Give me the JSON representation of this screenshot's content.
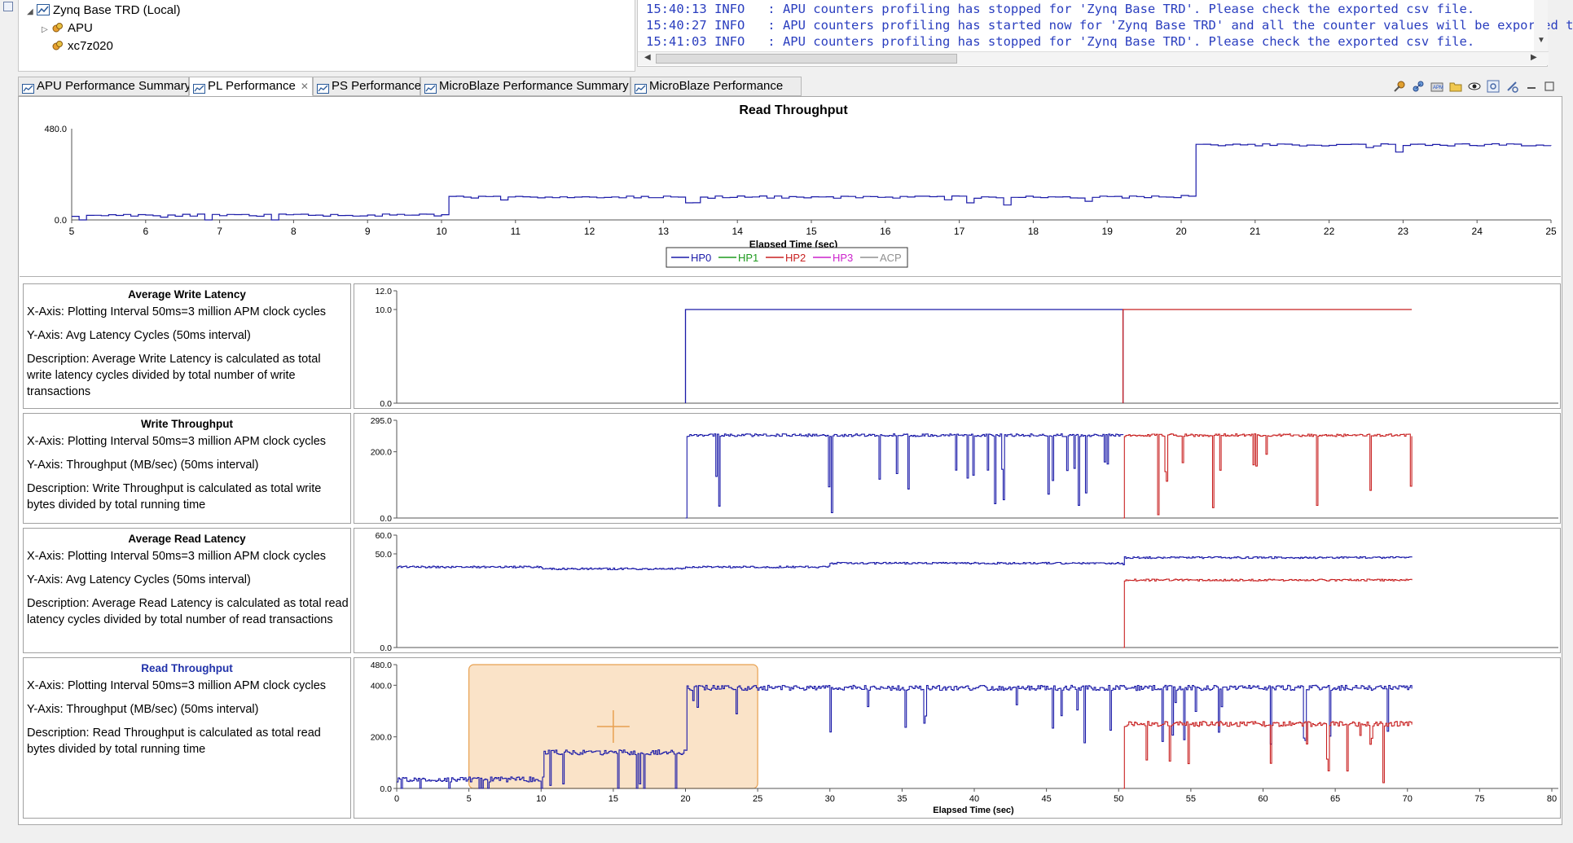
{
  "tree": {
    "root": "Zynq Base TRD (Local)",
    "children": [
      "APU",
      "xc7z020"
    ]
  },
  "console": {
    "lines": [
      "15:40:13 INFO   : APU counters profiling has stopped for 'Zynq Base TRD'. Please check the exported csv file.",
      "15:40:27 INFO   : APU counters profiling has started now for 'Zynq Base TRD' and all the counter values will be exported t",
      "15:41:03 INFO   : APU counters profiling has stopped for 'Zynq Base TRD'. Please check the exported csv file."
    ]
  },
  "tabs": [
    {
      "label": "APU Performance Summary",
      "active": false
    },
    {
      "label": "PL Performance",
      "active": true,
      "closable": true
    },
    {
      "label": "PS Performance",
      "active": false
    },
    {
      "label": "MicroBlaze Performance Summary",
      "active": false
    },
    {
      "label": "MicroBlaze Performance",
      "active": false
    }
  ],
  "colors": {
    "HP0": "#1a1aa8",
    "HP1": "#1e9a1e",
    "HP2": "#c82020",
    "HP3": "#cc22cc",
    "ACP": "#909090",
    "selection": "#fae3c8"
  },
  "top_chart": {
    "title": "Read Throughput",
    "xlabel": "Elapsed Time (sec)",
    "ymax_label": "480.0",
    "ymin_label": "0.0",
    "xticks": [
      "5",
      "6",
      "7",
      "8",
      "9",
      "10",
      "11",
      "12",
      "13",
      "14",
      "15",
      "16",
      "17",
      "18",
      "19",
      "20",
      "21",
      "22",
      "23",
      "24",
      "25"
    ],
    "legend": [
      "HP0",
      "HP1",
      "HP2",
      "HP3",
      "ACP"
    ]
  },
  "chart_data": [
    {
      "type": "line",
      "title": "Read Throughput",
      "xlabel": "Elapsed Time (sec)",
      "xlim": [
        5,
        25
      ],
      "ylim": [
        0,
        480
      ],
      "series": [
        {
          "name": "HP0",
          "x": [
            5,
            9.9,
            10,
            20,
            20.2,
            25
          ],
          "values": [
            25,
            25,
            120,
            125,
            395,
            390
          ]
        }
      ]
    },
    {
      "type": "line",
      "title": "Average Write Latency",
      "xlim": [
        0,
        80
      ],
      "ylim": [
        0,
        12
      ],
      "series": [
        {
          "name": "HP0",
          "x": [
            20,
            20,
            50.3,
            50.3
          ],
          "values": [
            0,
            10,
            10,
            0
          ]
        },
        {
          "name": "HP2",
          "x": [
            50.3,
            50.3,
            70.3
          ],
          "values": [
            0,
            10,
            10
          ]
        }
      ]
    },
    {
      "type": "line",
      "title": "Write Throughput",
      "xlim": [
        0,
        80
      ],
      "ylim": [
        0,
        295
      ],
      "series": [
        {
          "name": "HP0",
          "x": [
            20,
            20.1,
            50.3
          ],
          "values": [
            0,
            250,
            250
          ]
        },
        {
          "name": "HP2",
          "x": [
            50.3,
            50.4,
            70.3
          ],
          "values": [
            0,
            250,
            250
          ]
        }
      ]
    },
    {
      "type": "line",
      "title": "Average Read Latency",
      "xlim": [
        0,
        80
      ],
      "ylim": [
        0,
        60
      ],
      "series": [
        {
          "name": "HP0",
          "x": [
            0,
            10,
            20,
            30,
            50.3,
            50.4,
            70.3
          ],
          "values": [
            43,
            42,
            43,
            45,
            44,
            48,
            48
          ]
        },
        {
          "name": "HP2",
          "x": [
            50.3,
            50.4,
            70.3
          ],
          "values": [
            0,
            36,
            36
          ]
        }
      ]
    },
    {
      "type": "line",
      "title": "Read Throughput",
      "xlabel": "Elapsed Time (sec)",
      "xlim": [
        0,
        80
      ],
      "ylim": [
        0,
        480
      ],
      "series": [
        {
          "name": "HP0",
          "x": [
            0,
            10,
            10.1,
            20,
            20.1,
            70.3
          ],
          "values": [
            35,
            35,
            140,
            140,
            390,
            390
          ]
        },
        {
          "name": "HP2",
          "x": [
            50.3,
            50.4,
            70.3
          ],
          "values": [
            0,
            250,
            250
          ]
        }
      ]
    }
  ],
  "panels": [
    {
      "title": "Average Write Latency",
      "x_axis": "X-Axis: Plotting Interval 50ms=3 million APM clock cycles",
      "y_axis": "Y-Axis: Avg Latency Cycles (50ms interval)",
      "description": "Description: Average Write Latency is calculated as total write latency cycles divided by total number of write transactions",
      "yticks": [
        "12.0",
        "10.0",
        "0.0"
      ]
    },
    {
      "title": "Write Throughput",
      "x_axis": "X-Axis: Plotting Interval 50ms=3 million APM clock cycles",
      "y_axis": "Y-Axis: Throughput (MB/sec) (50ms interval)",
      "description": "Description: Write Throughput is calculated as total write bytes divided by total running time",
      "yticks": [
        "295.0",
        "200.0",
        "0.0"
      ]
    },
    {
      "title": "Average Read Latency",
      "x_axis": "X-Axis: Plotting Interval 50ms=3 million APM clock cycles",
      "y_axis": "Y-Axis: Avg Latency Cycles (50ms interval)",
      "description": "Description: Average Read Latency is calculated as total read latency cycles divided by total number of read transactions",
      "yticks": [
        "60.0",
        "50.0",
        "0.0"
      ]
    },
    {
      "title": "Read Throughput",
      "x_axis": "X-Axis: Plotting Interval 50ms=3 million APM clock cycles",
      "y_axis": "Y-Axis: Throughput (MB/sec) (50ms interval)",
      "description": "Description: Read Throughput is calculated as total read bytes divided by total running time",
      "yticks": [
        "480.0",
        "400.0",
        "200.0",
        "0.0"
      ],
      "xticks": [
        "0",
        "5",
        "10",
        "15",
        "20",
        "25",
        "30",
        "35",
        "40",
        "45",
        "50",
        "55",
        "60",
        "65",
        "70",
        "75",
        "80"
      ],
      "xlabel": "Elapsed Time (sec)",
      "selection": [
        5,
        25
      ]
    }
  ]
}
